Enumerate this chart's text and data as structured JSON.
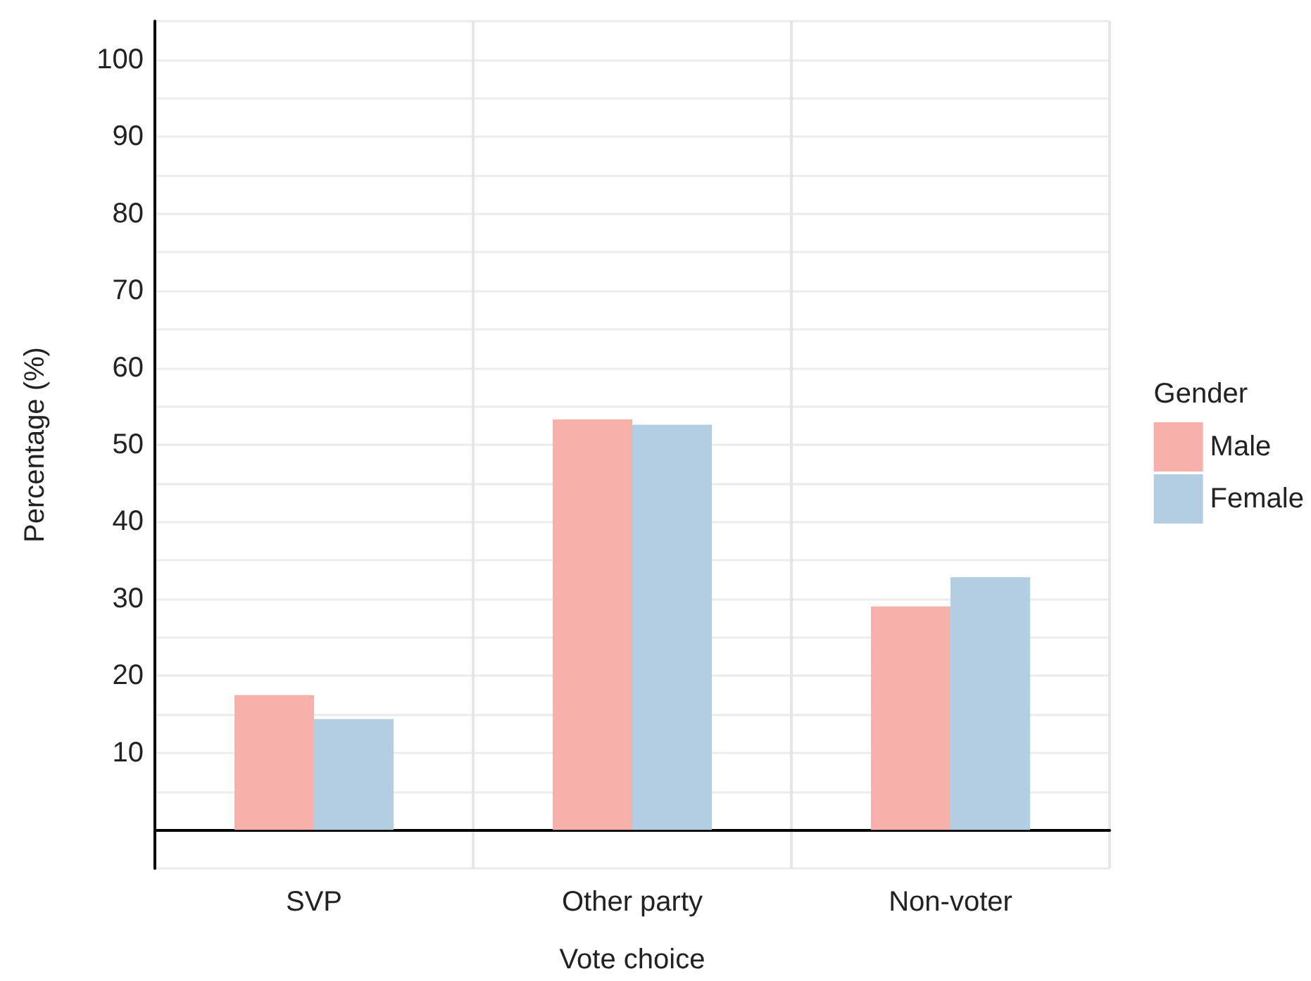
{
  "chart_data": {
    "type": "bar",
    "xlabel": "Vote choice",
    "ylabel": "Percentage (%)",
    "legend_title": "Gender",
    "categories": [
      "SVP",
      "Other party",
      "Non-voter"
    ],
    "series": [
      {
        "name": "Male",
        "color": "#f8b0ab",
        "values": [
          17.5,
          53.3,
          29.0
        ]
      },
      {
        "name": "Female",
        "color": "#b3cde3",
        "values": [
          14.4,
          52.6,
          32.8
        ]
      }
    ],
    "ylim": [
      -5,
      105
    ],
    "yticks": [
      10,
      20,
      30,
      40,
      50,
      60,
      70,
      80,
      90,
      100
    ],
    "grid": true,
    "legend": "right"
  }
}
